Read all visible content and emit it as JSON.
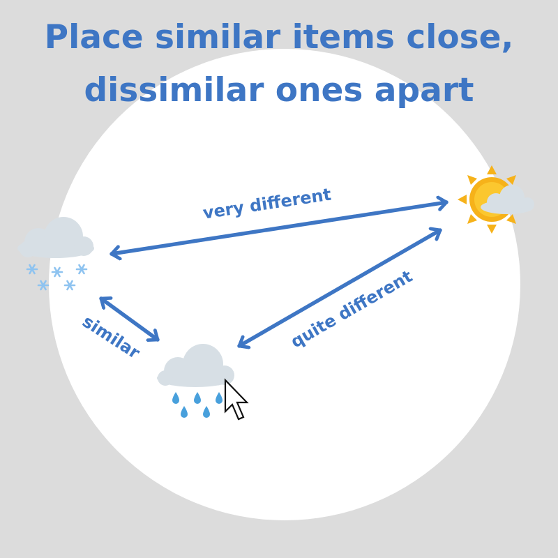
{
  "title": {
    "line1": "Place similar items close,",
    "line2": "dissimilar ones apart"
  },
  "nodes": [
    {
      "id": "snow",
      "icon": "snow-cloud-icon"
    },
    {
      "id": "rain",
      "icon": "rain-cloud-icon"
    },
    {
      "id": "sun",
      "icon": "sun-behind-cloud-icon"
    }
  ],
  "edges": [
    {
      "from": "snow",
      "to": "sun",
      "label": "very different"
    },
    {
      "from": "rain",
      "to": "sun",
      "label": "quite different"
    },
    {
      "from": "snow",
      "to": "rain",
      "label": "similar"
    }
  ],
  "pointer": {
    "icon": "mouse-pointer-icon"
  },
  "colors": {
    "background": "#dcdcdc",
    "circle": "#ffffff",
    "accent": "#3e76c4",
    "cloud": "#d7dfe5",
    "snowflake": "#8ec3f0",
    "raindrop": "#48a0dc",
    "sun": "#f6b21a"
  }
}
